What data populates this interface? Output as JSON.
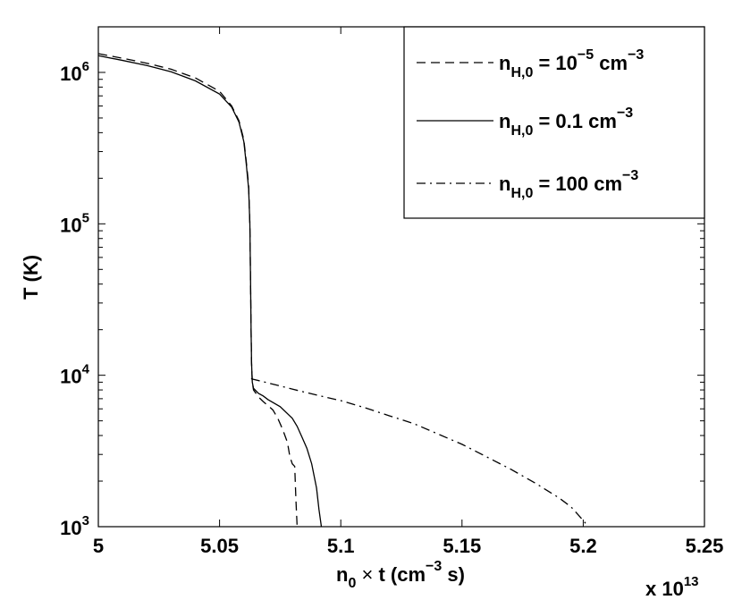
{
  "chart_data": {
    "type": "line",
    "xlabel": {
      "base": "n",
      "sub": "0",
      "times": "×",
      "var": "t",
      "open": "(cm",
      "sup": "−3",
      "close": " s)"
    },
    "ylabel": "T (K)",
    "x_multiplier": {
      "text": "x 10",
      "exp": "13"
    },
    "xlim": [
      5.0,
      5.25
    ],
    "ylim": [
      1000,
      2000000
    ],
    "yscale": "log",
    "xticks": [
      5.0,
      5.05,
      5.1,
      5.15,
      5.2,
      5.25
    ],
    "xtick_labels": [
      "5",
      "5.05",
      "5.1",
      "5.15",
      "5.2",
      "5.25"
    ],
    "yticks": [
      1000,
      10000,
      100000,
      1000000
    ],
    "ytick_labels": [
      {
        "base": "10",
        "exp": "3"
      },
      {
        "base": "10",
        "exp": "4"
      },
      {
        "base": "10",
        "exp": "5"
      },
      {
        "base": "10",
        "exp": "6"
      }
    ],
    "grid": false,
    "legend_position": "top-right",
    "series": [
      {
        "name": "n_H,0 = 10^-5 cm^-3",
        "legend": {
          "pre": "n",
          "sub": "H,0",
          "mid": " = 10",
          "sup": "−5",
          "post": " cm",
          "sup2": "−3"
        },
        "style": "dashed",
        "x": [
          5.0,
          5.01,
          5.02,
          5.03,
          5.04,
          5.05,
          5.055,
          5.058,
          5.06,
          5.061,
          5.062,
          5.0625,
          5.0628,
          5.063,
          5.0632,
          5.0635,
          5.064,
          5.065,
          5.066,
          5.068,
          5.07,
          5.072,
          5.074,
          5.076,
          5.078,
          5.079,
          5.08,
          5.081,
          5.0815,
          5.082
        ],
        "y": [
          1330000,
          1240000,
          1150000,
          1050000,
          920000,
          750000,
          600000,
          480000,
          360000,
          260000,
          180000,
          100000,
          40000,
          20000,
          12000,
          9000,
          8000,
          7600,
          7200,
          6700,
          6300,
          5900,
          5200,
          4400,
          3600,
          2900,
          2600,
          2500,
          1500,
          1000
        ]
      },
      {
        "name": "n_H,0 = 0.1 cm^-3",
        "legend": {
          "pre": "n",
          "sub": "H,0",
          "mid": " = 0.1 cm",
          "sup": "−3",
          "post": "",
          "sup2": ""
        },
        "style": "solid",
        "x": [
          5.0,
          5.01,
          5.02,
          5.03,
          5.04,
          5.05,
          5.055,
          5.058,
          5.06,
          5.061,
          5.062,
          5.0625,
          5.0628,
          5.063,
          5.0632,
          5.0635,
          5.064,
          5.066,
          5.068,
          5.07,
          5.075,
          5.08,
          5.082,
          5.084,
          5.086,
          5.088,
          5.09,
          5.091,
          5.092
        ],
        "y": [
          1290000,
          1200000,
          1110000,
          1010000,
          880000,
          720000,
          590000,
          470000,
          350000,
          250000,
          170000,
          100000,
          40000,
          20000,
          12000,
          9000,
          8200,
          7600,
          7300,
          6900,
          6200,
          5200,
          4600,
          3900,
          3300,
          2600,
          1800,
          1300,
          1000
        ]
      },
      {
        "name": "n_H,0 = 100 cm^-3",
        "legend": {
          "pre": "n",
          "sub": "H,0",
          "mid": " = 100 cm",
          "sup": "−3",
          "post": "",
          "sup2": ""
        },
        "style": "dashdot",
        "x": [
          5.063,
          5.064,
          5.07,
          5.08,
          5.09,
          5.1,
          5.11,
          5.12,
          5.13,
          5.14,
          5.15,
          5.16,
          5.17,
          5.18,
          5.19,
          5.195,
          5.2,
          5.201
        ],
        "y": [
          9500,
          9400,
          8900,
          8100,
          7400,
          6800,
          6100,
          5400,
          4800,
          4100,
          3500,
          2900,
          2400,
          1950,
          1550,
          1350,
          1100,
          1050
        ]
      }
    ]
  }
}
